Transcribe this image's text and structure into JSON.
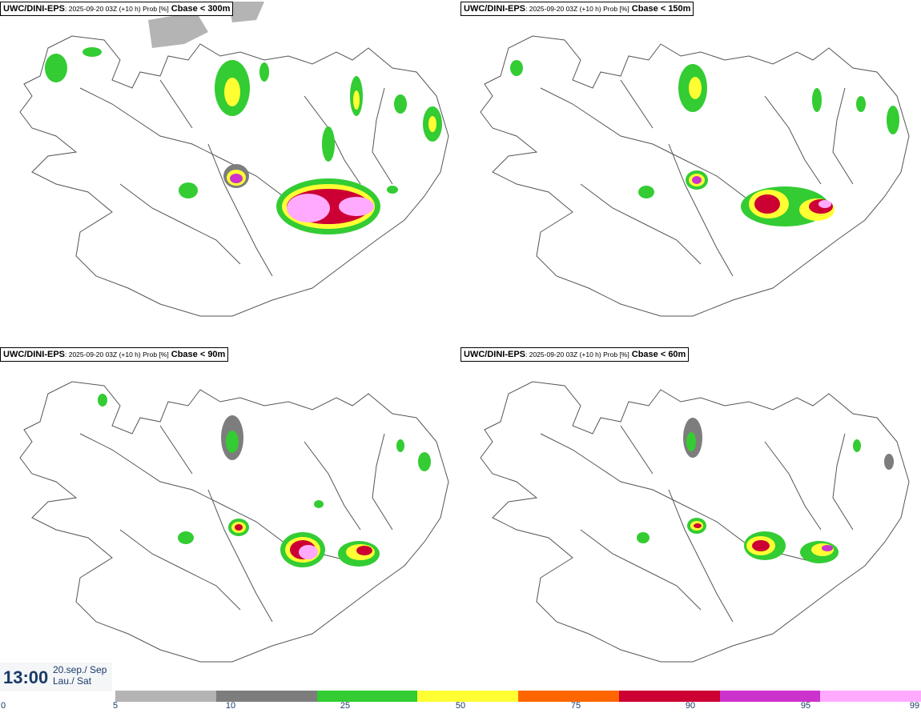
{
  "panels": [
    {
      "model": "UWC/DINI-EPS",
      "meta": ": 2025-09-20 03Z (+10 h) Prob [%]",
      "param": "Cbase < 300m"
    },
    {
      "model": "UWC/DINI-EPS",
      "meta": ": 2025-09-20 03Z (+10 h) Prob [%]",
      "param": "Cbase < 150m"
    },
    {
      "model": "UWC/DINI-EPS",
      "meta": ": 2025-09-20 03Z (+10 h) Prob [%]",
      "param": "Cbase < 90m"
    },
    {
      "model": "UWC/DINI-EPS",
      "meta": ": 2025-09-20 03Z (+10 h) Prob [%]",
      "param": "Cbase < 60m"
    }
  ],
  "footer": {
    "time": "13:00",
    "date_line1": "20.sep./ Sep",
    "date_line2": "Lau./ Sat"
  },
  "legend": {
    "ticks": [
      "0",
      "5",
      "10",
      "25",
      "50",
      "75",
      "90",
      "95",
      "99"
    ],
    "colors": [
      "#b4b4b4",
      "#7d7d7d",
      "#33cc33",
      "#ffff33",
      "#ff6600",
      "#cc0033",
      "#cc33cc",
      "#ffaaff"
    ]
  }
}
